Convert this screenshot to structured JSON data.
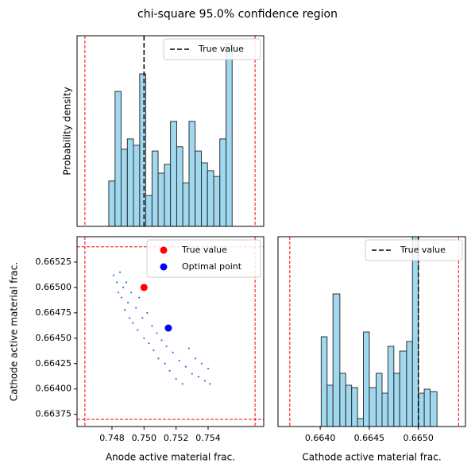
{
  "title": "chi-square 95.0% confidence region",
  "chart_data": [
    {
      "type": "histogram",
      "ylabel": "Probability density",
      "color": "#87ceeb",
      "xlim": [
        0.74582,
        0.75747
      ],
      "ylim": [
        0,
        630
      ],
      "bins": [
        0.7478,
        0.74819,
        0.74857,
        0.74896,
        0.74934,
        0.74973,
        0.75011,
        0.7505,
        0.75088,
        0.75127,
        0.75165,
        0.75204,
        0.75242,
        0.75281,
        0.75319,
        0.75358,
        0.75396,
        0.75435,
        0.75473,
        0.75512,
        0.7555
      ],
      "values": [
        150,
        446,
        255,
        289,
        268,
        504,
        102,
        249,
        176,
        205,
        347,
        263,
        144,
        347,
        249,
        210,
        184,
        165,
        289,
        604
      ],
      "reference_line": {
        "name": "True value",
        "value": 0.75
      },
      "xbounds": [
        0.74631,
        0.75693
      ],
      "legend": "upper right"
    },
    {
      "type": "scatter",
      "xlabel": "Anode active material frac.",
      "ylabel": "Cathode active material frac.",
      "color": "#4169e1",
      "xlim": [
        0.74582,
        0.75747
      ],
      "ylim": [
        0.66363,
        0.6655
      ],
      "xticks": [
        0.748,
        {
          "value": 0.75,
          "label": "0.750"
        },
        0.752,
        0.754
      ],
      "yticks": [
        0.66375,
        {
          "value": 0.664,
          "label": "0.66400"
        },
        0.66425,
        {
          "value": 0.6645,
          "label": "0.66450"
        },
        0.66475,
        {
          "value": 0.665,
          "label": "0.66500"
        },
        0.66525
      ],
      "x": [
        0.7481,
        0.7483,
        0.7484,
        0.7485,
        0.7486,
        0.7487,
        0.7488,
        0.7489,
        0.749,
        0.7491,
        0.7492,
        0.7493,
        0.7495,
        0.7496,
        0.7497,
        0.7499,
        0.75,
        0.7502,
        0.7503,
        0.7505,
        0.7506,
        0.7508,
        0.7509,
        0.7511,
        0.7513,
        0.7514,
        0.7516,
        0.7518,
        0.752,
        0.7522,
        0.7524,
        0.7526,
        0.7528,
        0.753,
        0.7532,
        0.7534,
        0.7536,
        0.7538,
        0.754,
        0.7541
      ],
      "y": [
        0.66512,
        0.66505,
        0.66495,
        0.66515,
        0.6649,
        0.665,
        0.66478,
        0.66505,
        0.66485,
        0.6647,
        0.66495,
        0.66465,
        0.6648,
        0.66458,
        0.6649,
        0.6647,
        0.6645,
        0.66475,
        0.66445,
        0.66462,
        0.66438,
        0.66455,
        0.6643,
        0.66448,
        0.66425,
        0.66442,
        0.66418,
        0.66436,
        0.6641,
        0.66428,
        0.66405,
        0.66422,
        0.6644,
        0.66415,
        0.6643,
        0.66412,
        0.66425,
        0.66408,
        0.6642,
        0.66405
      ],
      "markers": [
        {
          "name": "True value",
          "x": 0.75,
          "y": 0.665,
          "color": "#ff0000"
        },
        {
          "name": "Optimal point",
          "x": 0.75152,
          "y": 0.6646,
          "color": "#0000ff"
        }
      ],
      "xbounds": [
        0.74631,
        0.75693
      ],
      "ybounds": [
        0.6637,
        0.6654
      ],
      "legend": "upper right"
    },
    {
      "type": "histogram",
      "xlabel": "Cathode active material frac.",
      "color": "#87ceeb",
      "xlim": [
        0.66357,
        0.66548
      ],
      "ylim": [
        0,
        2390
      ],
      "xticks": [
        {
          "value": 0.664,
          "label": "0.6640"
        },
        0.6645,
        {
          "value": 0.665,
          "label": "0.6650"
        }
      ],
      "bins": [
        0.66401,
        0.66407,
        0.66413,
        0.6642,
        0.66426,
        0.66432,
        0.66438,
        0.66444,
        0.6645,
        0.66457,
        0.66463,
        0.66469,
        0.66475,
        0.66481,
        0.66488,
        0.66494,
        0.665,
        0.66506,
        0.66512,
        0.66519
      ],
      "values": [
        1130,
        520,
        1670,
        670,
        520,
        490,
        100,
        1190,
        490,
        670,
        420,
        1010,
        670,
        950,
        1070,
        2390,
        420,
        470,
        440
      ],
      "reference_line": {
        "name": "True value",
        "value": 0.665
      },
      "xbounds": [
        0.66369,
        0.66541
      ],
      "legend": "upper right"
    }
  ]
}
